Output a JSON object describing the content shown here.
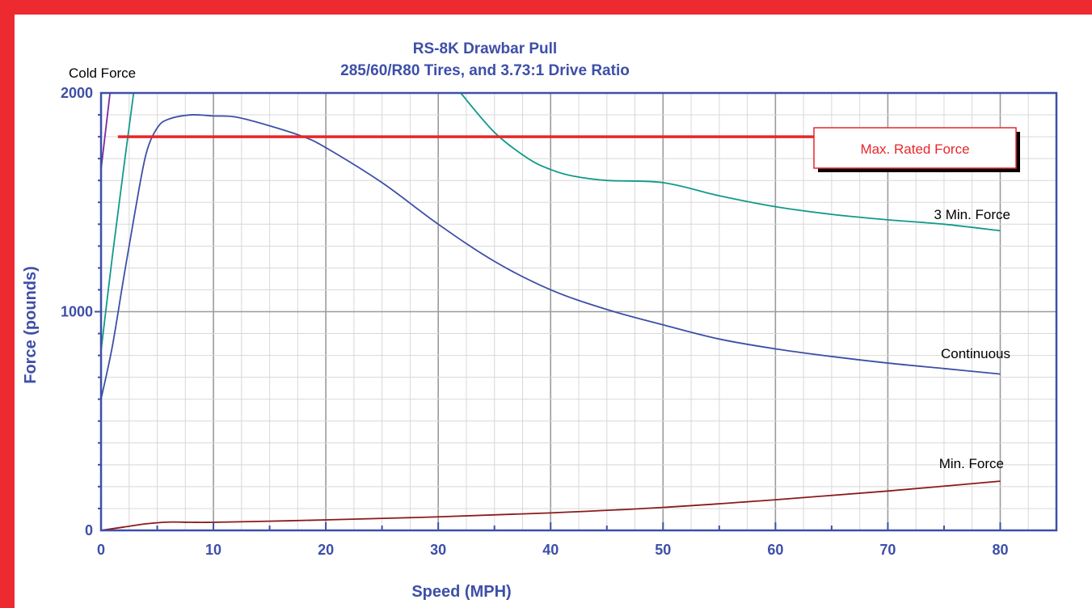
{
  "chart_data": {
    "type": "line",
    "title": "RS-8K Drawbar Pull",
    "subtitle": "285/60/R80 Tires, and 3.73:1 Drive Ratio",
    "xlabel": "Speed  (MPH)",
    "ylabel": "Force  (pounds)",
    "xlim": [
      0,
      85
    ],
    "ylim": [
      0,
      2000
    ],
    "x_ticks": [
      "0",
      "10",
      "20",
      "30",
      "40",
      "50",
      "60",
      "70",
      "80"
    ],
    "y_ticks": [
      "0",
      "1000",
      "2000"
    ],
    "grid": true,
    "series": [
      {
        "name": "Cold Force",
        "color": "#7b2a9c",
        "x": [
          0,
          0.8
        ],
        "y": [
          1650,
          2000
        ]
      },
      {
        "name": "",
        "color": "#109a8a",
        "x": [
          0,
          1,
          2,
          2.9
        ],
        "y": [
          820,
          1250,
          1650,
          2000
        ]
      },
      {
        "name": "3 Min. Force",
        "color": "#109a8a",
        "x": [
          32,
          35,
          38,
          40,
          42,
          45,
          50,
          55,
          60,
          65,
          70,
          75,
          80
        ],
        "y": [
          2000,
          1820,
          1700,
          1650,
          1620,
          1600,
          1590,
          1530,
          1480,
          1445,
          1420,
          1400,
          1370
        ]
      },
      {
        "name": "Continuous",
        "color": "#3d4fa8",
        "x": [
          0,
          1,
          2,
          3,
          4,
          5,
          6,
          8,
          10,
          12,
          15,
          18,
          20,
          25,
          30,
          35,
          40,
          45,
          50,
          55,
          60,
          65,
          70,
          75,
          80
        ],
        "y": [
          600,
          840,
          1150,
          1450,
          1720,
          1840,
          1880,
          1900,
          1895,
          1890,
          1850,
          1800,
          1750,
          1590,
          1400,
          1230,
          1100,
          1010,
          940,
          875,
          830,
          795,
          765,
          740,
          715
        ]
      },
      {
        "name": "Min. Force",
        "color": "#8b1a1a",
        "x": [
          0,
          2,
          4,
          6,
          8,
          10,
          15,
          20,
          30,
          40,
          50,
          60,
          70,
          80
        ],
        "y": [
          0,
          15,
          30,
          38,
          37,
          37,
          42,
          48,
          62,
          80,
          105,
          140,
          180,
          225
        ]
      }
    ],
    "reference_lines": [
      {
        "label": "Max. Rated  Force",
        "y": 1800,
        "x_start": 1.5,
        "x_end": 80,
        "color": "#e8262a"
      }
    ],
    "annotations": [
      "Cold Force",
      "3 Min. Force",
      "Continuous",
      "Min. Force",
      "Max. Rated  Force"
    ]
  },
  "colors": {
    "border": "#ed2a2f",
    "axis": "#3d4fa8",
    "grid_major": "#9a9a9a",
    "grid_minor": "#d8d8d8"
  }
}
